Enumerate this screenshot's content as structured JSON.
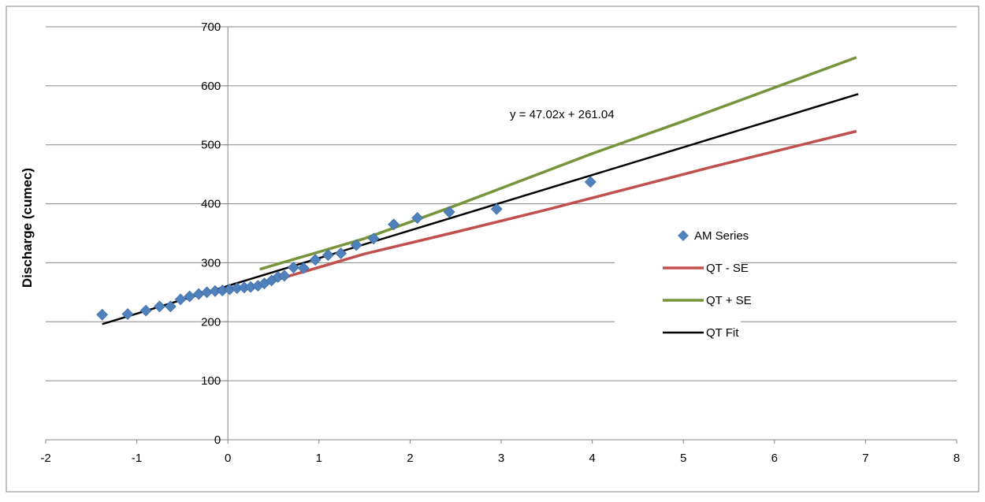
{
  "chart_data": {
    "type": "scatter",
    "title": "",
    "xlabel": "",
    "ylabel": "Discharge (cumec)",
    "xlim": [
      -2,
      8
    ],
    "ylim": [
      0,
      700
    ],
    "x_ticks": [
      -2,
      -1,
      0,
      1,
      2,
      3,
      4,
      5,
      6,
      7,
      8
    ],
    "y_ticks": [
      0,
      100,
      200,
      300,
      400,
      500,
      600,
      700
    ],
    "grid": "horizontal",
    "legend_position": "right",
    "annotation": "y = 47.02x + 261.04",
    "series": [
      {
        "name": "AM Series",
        "kind": "scatter",
        "color": "#4f81bd",
        "marker": "diamond",
        "points": [
          [
            -1.38,
            212
          ],
          [
            -1.1,
            213
          ],
          [
            -0.9,
            219
          ],
          [
            -0.75,
            226
          ],
          [
            -0.63,
            226
          ],
          [
            -0.52,
            238
          ],
          [
            -0.42,
            243
          ],
          [
            -0.32,
            247
          ],
          [
            -0.23,
            250
          ],
          [
            -0.14,
            252
          ],
          [
            -0.06,
            253
          ],
          [
            0.02,
            255
          ],
          [
            0.1,
            257
          ],
          [
            0.18,
            258
          ],
          [
            0.25,
            259
          ],
          [
            0.33,
            261
          ],
          [
            0.4,
            265
          ],
          [
            0.48,
            270
          ],
          [
            0.55,
            276
          ],
          [
            0.62,
            278
          ],
          [
            0.72,
            292
          ],
          [
            0.83,
            291
          ],
          [
            0.96,
            305
          ],
          [
            1.1,
            313
          ],
          [
            1.24,
            316
          ],
          [
            1.41,
            330
          ],
          [
            1.6,
            341
          ],
          [
            1.82,
            365
          ],
          [
            2.08,
            376
          ],
          [
            2.43,
            386
          ],
          [
            2.95,
            391
          ],
          [
            3.98,
            437
          ]
        ]
      },
      {
        "name": "QT - SE",
        "kind": "line",
        "color": "#c0504d",
        "points": [
          [
            0.55,
            272
          ],
          [
            1.5,
            315
          ],
          [
            2.5,
            352
          ],
          [
            3.5,
            390
          ],
          [
            5.3,
            462
          ],
          [
            6.9,
            523
          ]
        ]
      },
      {
        "name": "QT + SE",
        "kind": "line",
        "color": "#77933c",
        "points": [
          [
            0.35,
            289
          ],
          [
            1.5,
            341
          ],
          [
            2.5,
            397
          ],
          [
            4,
            485
          ],
          [
            5,
            540
          ],
          [
            6.9,
            648
          ]
        ]
      },
      {
        "name": "QT Fit",
        "kind": "line",
        "color": "#000000",
        "points": [
          [
            -1.38,
            196
          ],
          [
            6.92,
            586
          ]
        ]
      }
    ]
  }
}
